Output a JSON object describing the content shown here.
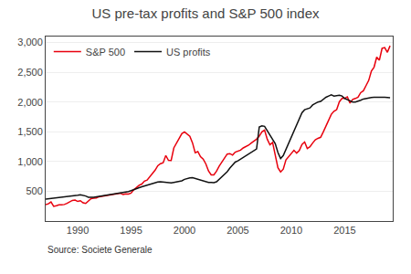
{
  "chart_data": {
    "type": "line",
    "title": "US pre-tax profits and S&P 500 index",
    "annotations": [
      "Source: Societe Generale"
    ],
    "x": [
      1987.0,
      1987.25,
      1987.5,
      1987.75,
      1988.0,
      1988.25,
      1988.5,
      1988.75,
      1989.0,
      1989.25,
      1989.5,
      1989.75,
      1990.0,
      1990.25,
      1990.5,
      1990.75,
      1991.0,
      1991.25,
      1991.5,
      1991.75,
      1992.0,
      1992.25,
      1992.5,
      1992.75,
      1993.0,
      1993.25,
      1993.5,
      1993.75,
      1994.0,
      1994.25,
      1994.5,
      1994.75,
      1995.0,
      1995.25,
      1995.5,
      1995.75,
      1996.0,
      1996.25,
      1996.5,
      1996.75,
      1997.0,
      1997.25,
      1997.5,
      1997.75,
      1998.0,
      1998.25,
      1998.5,
      1998.75,
      1999.0,
      1999.25,
      1999.5,
      1999.75,
      2000.0,
      2000.25,
      2000.5,
      2000.75,
      2001.0,
      2001.25,
      2001.5,
      2001.75,
      2002.0,
      2002.25,
      2002.5,
      2002.75,
      2003.0,
      2003.25,
      2003.5,
      2003.75,
      2004.0,
      2004.25,
      2004.5,
      2004.75,
      2005.0,
      2005.25,
      2005.5,
      2005.75,
      2006.0,
      2006.25,
      2006.5,
      2006.75,
      2007.0,
      2007.25,
      2007.5,
      2007.75,
      2008.0,
      2008.25,
      2008.5,
      2008.75,
      2009.0,
      2009.25,
      2009.5,
      2009.75,
      2010.0,
      2010.25,
      2010.5,
      2010.75,
      2011.0,
      2011.25,
      2011.5,
      2011.75,
      2012.0,
      2012.25,
      2012.5,
      2012.75,
      2013.0,
      2013.25,
      2013.5,
      2013.75,
      2014.0,
      2014.25,
      2014.5,
      2014.75,
      2015.0,
      2015.25,
      2015.5,
      2015.75,
      2016.0,
      2016.25,
      2016.5,
      2016.75,
      2017.0,
      2017.25,
      2017.5,
      2017.75,
      2018.0,
      2018.25,
      2018.5,
      2018.75,
      2019.0,
      2019.25
    ],
    "series": [
      {
        "name": "S&P 500",
        "color": "#e8000d",
        "values": [
          274,
          289,
          321,
          247,
          258,
          271,
          272,
          278,
          298,
          321,
          347,
          353,
          329,
          342,
          307,
          295,
          330,
          375,
          385,
          387,
          408,
          415,
          422,
          434,
          436,
          449,
          447,
          461,
          467,
          444,
          457,
          454,
          470,
          524,
          562,
          600,
          621,
          671,
          687,
          740,
          787,
          855,
          929,
          963,
          980,
          1101,
          1020,
          1018,
          1228,
          1302,
          1388,
          1469,
          1498,
          1453,
          1423,
          1314,
          1148,
          1166,
          1082,
          1040,
          960,
          840,
          775,
          776,
          838,
          923,
          990,
          1050,
          1125,
          1133,
          1107,
          1157,
          1175,
          1192,
          1228,
          1248,
          1274,
          1310,
          1337,
          1376,
          1426,
          1498,
          1527,
          1375,
          1282,
          1322,
          1107,
          896,
          825,
          872,
          1027,
          1087,
          1141,
          1188,
          1141,
          1183,
          1286,
          1327,
          1219,
          1247,
          1310,
          1365,
          1390,
          1407,
          1498,
          1606,
          1685,
          1794,
          1845,
          1872,
          2003,
          2059,
          2063,
          2086,
          1981,
          2044,
          2059,
          2080,
          2157,
          2188,
          2275,
          2362,
          2519,
          2585,
          2754,
          2702,
          2901,
          2914,
          2834,
          2945
        ]
      },
      {
        "name": "US profits",
        "color": "#111111",
        "values": [
          370,
          375,
          380,
          385,
          388,
          392,
          395,
          400,
          410,
          415,
          422,
          428,
          435,
          442,
          435,
          420,
          400,
          395,
          398,
          405,
          412,
          418,
          425,
          432,
          440,
          448,
          453,
          460,
          470,
          480,
          488,
          495,
          510,
          530,
          545,
          560,
          575,
          590,
          605,
          618,
          630,
          645,
          655,
          660,
          655,
          650,
          645,
          640,
          650,
          660,
          668,
          675,
          700,
          715,
          725,
          730,
          715,
          700,
          685,
          670,
          655,
          650,
          648,
          645,
          660,
          700,
          740,
          780,
          830,
          890,
          940,
          990,
          1010,
          1040,
          1060,
          1090,
          1120,
          1160,
          1190,
          1210,
          1580,
          1600,
          1590,
          1520,
          1450,
          1380,
          1300,
          1150,
          1050,
          1100,
          1200,
          1300,
          1400,
          1500,
          1600,
          1700,
          1820,
          1870,
          1890,
          1900,
          1950,
          1980,
          2000,
          2010,
          2050,
          2080,
          2100,
          2120,
          2100,
          2110,
          2115,
          2100,
          2060,
          2040,
          2020,
          2000,
          2000,
          2010,
          2030,
          2050,
          2060,
          2070,
          2075,
          2078,
          2080,
          2082,
          2080,
          2078,
          2075,
          2072
        ]
      }
    ],
    "xlim": [
      1987.0,
      2019.5
    ],
    "xticks": [
      1990,
      1995,
      2000,
      2005,
      2010,
      2015
    ],
    "ylim": [
      0,
      3100
    ],
    "yticks": [
      500,
      {
        "value": 1000,
        "label": "1,000"
      },
      {
        "value": 1500,
        "label": "1,500"
      },
      {
        "value": 2000,
        "label": "2,000"
      },
      {
        "value": 2500,
        "label": "2,500"
      },
      {
        "value": 3000,
        "label": "3,000"
      }
    ],
    "grid": "y",
    "legend": "upper left"
  }
}
